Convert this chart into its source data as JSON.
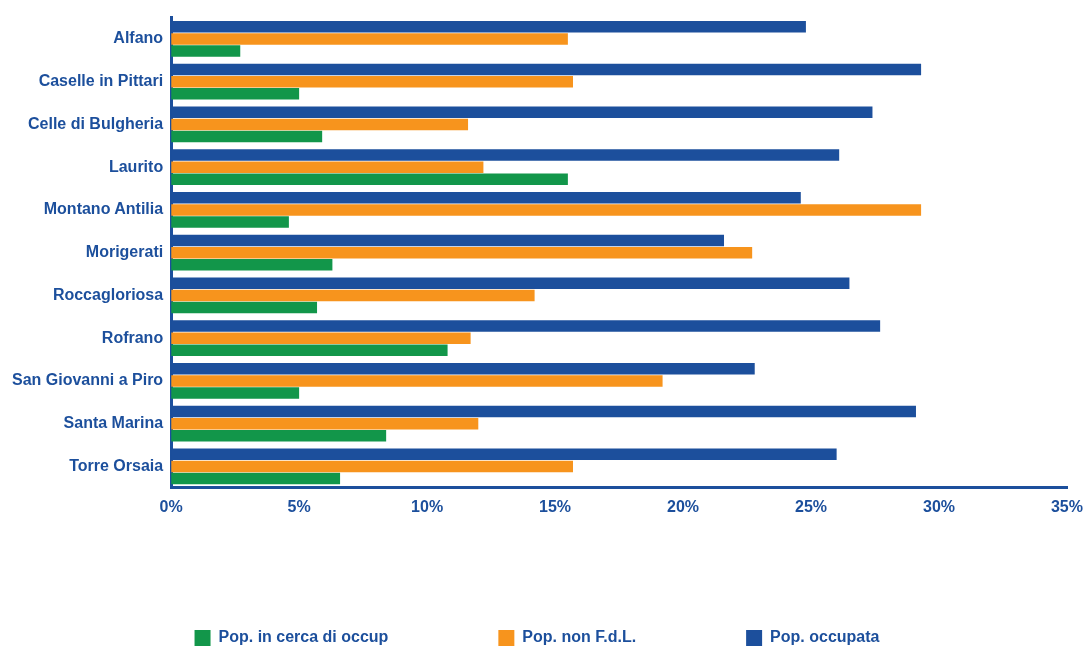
{
  "chart_data": {
    "type": "bar",
    "orientation": "horizontal",
    "categories": [
      "Alfano",
      "Caselle in Pittari",
      "Celle di Bulgheria",
      "Laurito",
      "Montano Antilia",
      "Morigerati",
      "Roccagloriosa",
      "Rofrano",
      "San Giovanni a Piro",
      "Santa Marina",
      "Torre Orsaia"
    ],
    "series": [
      {
        "name": "Pop. in cerca di occup",
        "color": "#12964a",
        "values": [
          2.7,
          5.0,
          5.9,
          15.5,
          4.6,
          6.3,
          5.7,
          10.8,
          5.0,
          8.4,
          6.6
        ]
      },
      {
        "name": "Pop. non F.d.L.",
        "color": "#f7941d",
        "values": [
          15.5,
          15.7,
          11.6,
          12.2,
          29.3,
          22.7,
          14.2,
          11.7,
          19.2,
          12.0,
          15.7
        ]
      },
      {
        "name": "Pop. occupata",
        "color": "#1c4f9c",
        "values": [
          24.8,
          29.3,
          27.4,
          26.1,
          24.6,
          21.6,
          26.5,
          27.7,
          22.8,
          29.1,
          26.0
        ]
      }
    ],
    "xlim": [
      0,
      35
    ],
    "xticks": [
      {
        "value": 0,
        "label": "0%"
      },
      {
        "value": 5,
        "label": "5%"
      },
      {
        "value": 10,
        "label": "10%"
      },
      {
        "value": 15,
        "label": "15%"
      },
      {
        "value": 20,
        "label": "20%"
      },
      {
        "value": 25,
        "label": "25%"
      },
      {
        "value": 30,
        "label": "30%"
      },
      {
        "value": 35,
        "label": "35%"
      }
    ],
    "grid": false,
    "legend": "bottom"
  }
}
